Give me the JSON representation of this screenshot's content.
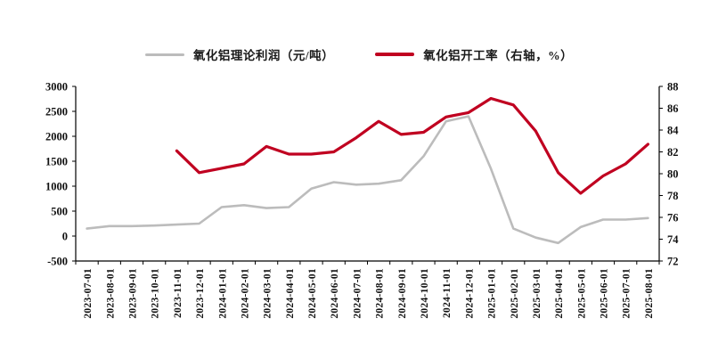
{
  "legend": {
    "profit_label": "氧化铝理论利润（元/吨）",
    "rate_label": "氧化铝开工率（右轴，%）"
  },
  "colors": {
    "profit_line": "#bcbcbc",
    "rate_line": "#c00020",
    "axis": "#000000",
    "background": "#ffffff"
  },
  "chart_data": {
    "type": "line",
    "title": "",
    "grid": false,
    "legend_position": "top",
    "categories": [
      "2023-07-01",
      "2023-08-01",
      "2023-09-01",
      "2023-10-01",
      "2023-11-01",
      "2023-12-01",
      "2024-01-01",
      "2024-02-01",
      "2024-03-01",
      "2024-04-01",
      "2024-05-01",
      "2024-06-01",
      "2024-07-01",
      "2024-08-01",
      "2024-09-01",
      "2024-10-01",
      "2024-11-01",
      "2024-12-01",
      "2025-01-01",
      "2025-02-01",
      "2025-03-01",
      "2025-04-01",
      "2025-05-01",
      "2025-06-01",
      "2025-07-01",
      "2025-08-01"
    ],
    "left_axis": {
      "min": -500,
      "max": 3000,
      "step": 500
    },
    "right_axis": {
      "min": 72,
      "max": 88,
      "step": 2
    },
    "series": [
      {
        "name": "氧化铝理论利润（元/吨）",
        "axis": "left",
        "color": "#bcbcbc",
        "width": 2.6,
        "values": [
          150,
          200,
          200,
          210,
          230,
          250,
          580,
          620,
          560,
          580,
          950,
          1080,
          1030,
          1050,
          1120,
          1600,
          2300,
          2400,
          1350,
          150,
          -30,
          -140,
          180,
          330,
          330,
          360
        ]
      },
      {
        "name": "氧化铝开工率（右轴，%）",
        "axis": "right",
        "color": "#c00020",
        "width": 3.2,
        "values": [
          null,
          null,
          null,
          null,
          82.1,
          80.1,
          80.5,
          80.9,
          82.5,
          81.8,
          81.8,
          82.0,
          83.3,
          84.8,
          83.6,
          83.8,
          85.2,
          85.6,
          86.9,
          86.3,
          83.9,
          80.1,
          78.2,
          79.8,
          80.9,
          82.7
        ]
      }
    ]
  }
}
